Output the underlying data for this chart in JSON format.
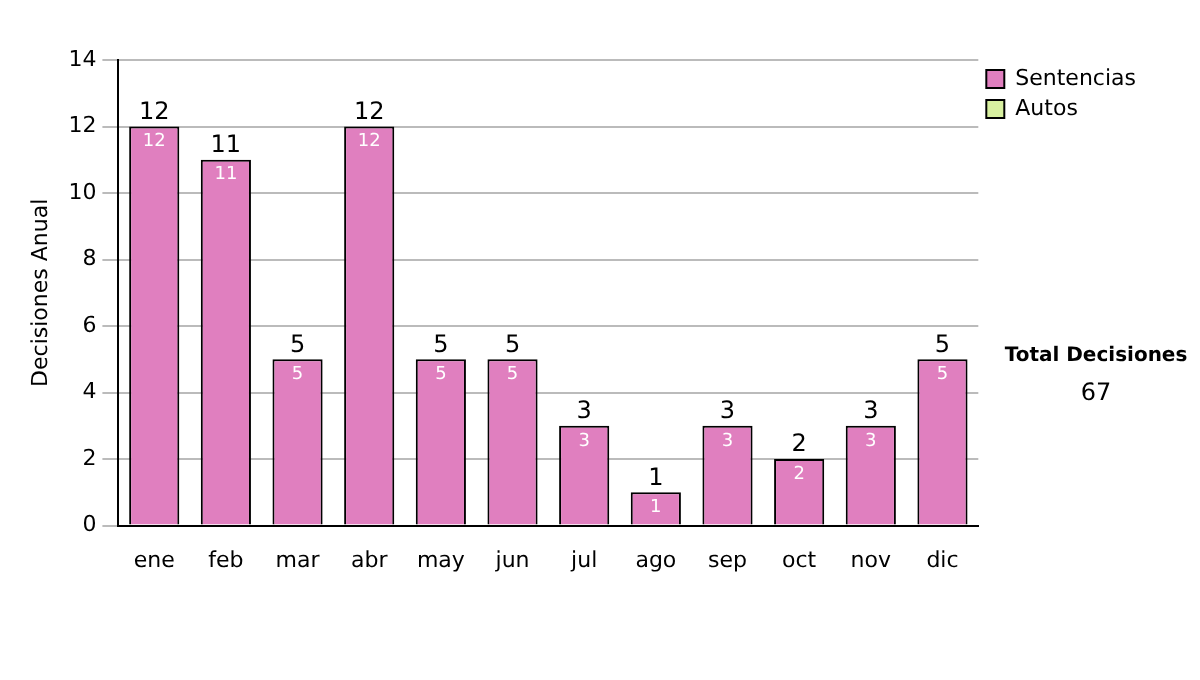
{
  "chart_data": {
    "type": "bar",
    "ylabel": "Decisiones Anual",
    "categories": [
      "ene",
      "feb",
      "mar",
      "abr",
      "may",
      "jun",
      "jul",
      "ago",
      "sep",
      "oct",
      "nov",
      "dic"
    ],
    "series": [
      {
        "name": "Sentencias",
        "color": "#e07fbf",
        "values": [
          12,
          11,
          5,
          12,
          5,
          5,
          3,
          1,
          3,
          2,
          3,
          5
        ],
        "value_labels": [
          "12",
          "11",
          "5",
          "12",
          "5",
          "5",
          "3",
          "1",
          "3",
          "2",
          "3",
          "5"
        ]
      },
      {
        "name": "Autos",
        "color": "#d8f0a0",
        "values": [
          0,
          0,
          0,
          0,
          0,
          0,
          0,
          0,
          0,
          0,
          0,
          0
        ],
        "value_labels": [
          null,
          null,
          null,
          null,
          null,
          null,
          null,
          null,
          null,
          null,
          null,
          null
        ]
      }
    ],
    "stacked": true,
    "totals": [
      "12",
      "11",
      "5",
      "12",
      "5",
      "5",
      "3",
      "1",
      "3",
      "2",
      "3",
      "5"
    ],
    "ylim": [
      0,
      14
    ],
    "yticks": [
      0,
      2,
      4,
      6,
      8,
      10,
      12,
      14
    ],
    "grid": "y",
    "legend": "right",
    "annotations": [
      "Total Decisiones",
      "67"
    ]
  }
}
